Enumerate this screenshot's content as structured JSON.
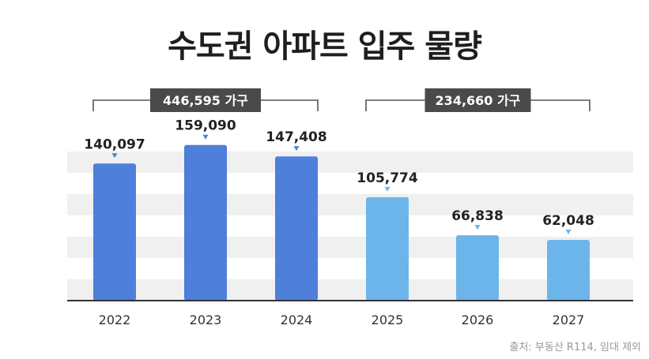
{
  "title": "수도권 아파트 입주 물량",
  "source": "출처: 부동산 R114, 임대 제외",
  "chart_data": {
    "type": "bar",
    "categories": [
      "2022",
      "2023",
      "2024",
      "2025",
      "2026",
      "2027"
    ],
    "values": [
      140097,
      159090,
      147408,
      105774,
      66838,
      62048
    ],
    "value_labels": [
      "140,097",
      "159,090",
      "147,408",
      "105,774",
      "66,838",
      "62,048"
    ],
    "ylim": [
      0,
      175000
    ],
    "grid": true,
    "bar_colors": [
      "#4f7edb",
      "#4f7edb",
      "#4f7edb",
      "#6bb5ea",
      "#6bb5ea",
      "#6bb5ea"
    ],
    "groups": [
      {
        "label": "446,595 가구",
        "from": 0,
        "to": 2
      },
      {
        "label": "234,660 가구",
        "from": 3,
        "to": 5
      }
    ]
  },
  "colors": {
    "past": "#4f7edb",
    "future": "#6bb5ea",
    "stripe": "#f0f0f0",
    "axis": "#333333",
    "bracket": "#555555",
    "group_label_bg": "#4a4a4a",
    "marker": "#4f7edb",
    "marker_light": "#6bb5ea"
  }
}
